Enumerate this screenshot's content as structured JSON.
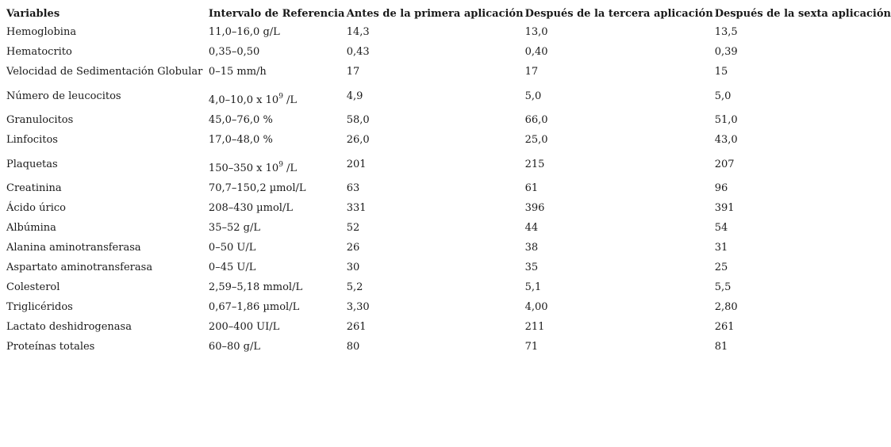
{
  "table": {
    "headers": [
      "Variables",
      "Intervalo de Referencia",
      "Antes de la primera aplicación",
      "Después de la tercera aplicación",
      "Después de la sexta aplicación"
    ],
    "rows": [
      {
        "variable": "Hemoglobina",
        "ref": "11,0–16,0 g/L",
        "v1": "14,3",
        "v2": "13,0",
        "v3": "13,5"
      },
      {
        "variable": "Hematocrito",
        "ref": "0,35–0,50",
        "v1": "0,43",
        "v2": "0,40",
        "v3": "0,39"
      },
      {
        "variable": "Velocidad de Sedimentación Globular",
        "ref": "0–15 mm/h",
        "v1": "17",
        "v2": "17",
        "v3": "15"
      },
      {
        "variable": "Número de leucocitos",
        "ref_pre": "4,0–10,0 x 10",
        "ref_sup": "9",
        "ref_post": " /L",
        "v1": "4,9",
        "v2": "5,0",
        "v3": "5,0"
      },
      {
        "variable": "Granulocitos",
        "ref": "45,0–76,0 %",
        "v1": "58,0",
        "v2": "66,0",
        "v3": "51,0"
      },
      {
        "variable": "Linfocitos",
        "ref": "17,0–48,0 %",
        "v1": "26,0",
        "v2": "25,0",
        "v3": "43,0"
      },
      {
        "variable": "Plaquetas",
        "ref_pre": "150–350 x 10",
        "ref_sup": "9",
        "ref_post": " /L",
        "v1": "201",
        "v2": "215",
        "v3": "207"
      },
      {
        "variable": "Creatinina",
        "ref": "70,7–150,2 µmol/L",
        "v1": "63",
        "v2": "61",
        "v3": "96"
      },
      {
        "variable": "Ácido úrico",
        "ref": "208–430 µmol/L",
        "v1": "331",
        "v2": "396",
        "v3": "391"
      },
      {
        "variable": "Albúmina",
        "ref": "35–52 g/L",
        "v1": "52",
        "v2": "44",
        "v3": "54"
      },
      {
        "variable": "Alanina aminotransferasa",
        "ref": "0–50 U/L",
        "v1": "26",
        "v2": "38",
        "v3": "31"
      },
      {
        "variable": "Aspartato aminotransferasa",
        "ref": "0–45 U/L",
        "v1": "30",
        "v2": "35",
        "v3": "25"
      },
      {
        "variable": "Colesterol",
        "ref": "2,59–5,18 mmol/L",
        "v1": "5,2",
        "v2": "5,1",
        "v3": "5,5"
      },
      {
        "variable": "Triglicéridos",
        "ref": "0,67–1,86 µmol/L",
        "v1": "3,30",
        "v2": "4,00",
        "v3": "2,80"
      },
      {
        "variable": "Lactato deshidrogenasa",
        "ref": "200–400 UI/L",
        "v1": "261",
        "v2": "211",
        "v3": "261"
      },
      {
        "variable": "Proteínas totales",
        "ref": "60–80 g/L",
        "v1": "80",
        "v2": "71",
        "v3": "81"
      }
    ]
  }
}
